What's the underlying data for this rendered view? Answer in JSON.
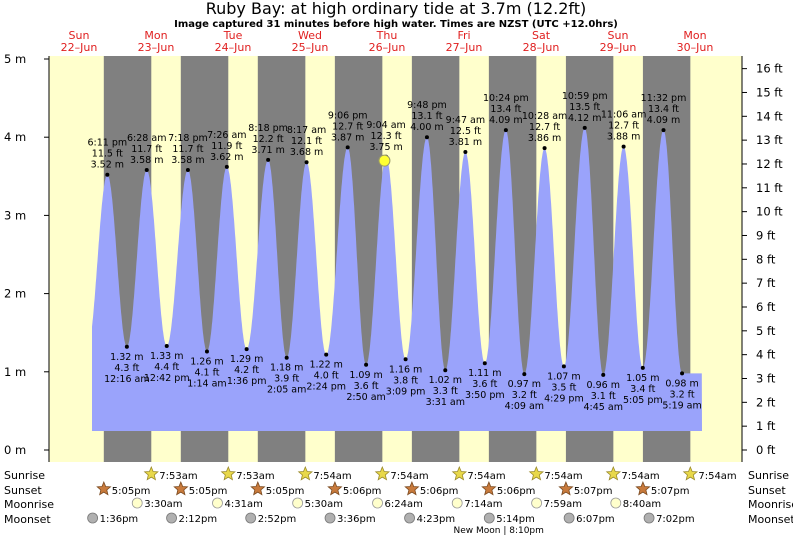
{
  "header": {
    "title": "Ruby Bay: at high  ordinary tide at 3.7m (12.2ft)",
    "subtitle": "Image captured 31 minutes before high water. Times are NZST (UTC +12.0hrs)"
  },
  "days": [
    {
      "name": "Sun",
      "date": "22–Jun"
    },
    {
      "name": "Mon",
      "date": "23–Jun"
    },
    {
      "name": "Tue",
      "date": "24–Jun"
    },
    {
      "name": "Wed",
      "date": "25–Jun"
    },
    {
      "name": "Thu",
      "date": "26–Jun"
    },
    {
      "name": "Fri",
      "date": "27–Jun"
    },
    {
      "name": "Sat",
      "date": "28–Jun"
    },
    {
      "name": "Sun",
      "date": "29–Jun"
    },
    {
      "name": "Mon",
      "date": "30–Jun"
    }
  ],
  "chart_data": {
    "type": "area",
    "y_left_unit": "m",
    "y_left_ticks": [
      "0 m",
      "1 m",
      "2 m",
      "3 m",
      "4 m",
      "5 m"
    ],
    "y_right_ticks": [
      "0 ft",
      "1 ft",
      "2 ft",
      "3 ft",
      "4 ft",
      "5 ft",
      "6 ft",
      "7 ft",
      "8 ft",
      "9 ft",
      "10 ft",
      "11 ft",
      "12 ft",
      "13 ft",
      "14 ft",
      "15 ft",
      "16 ft"
    ],
    "ylim_m": [
      0,
      5
    ],
    "start": "2025-06-22 00:00",
    "days_shown": 8,
    "tides": [
      {
        "type": "high",
        "day": 0,
        "time": "6:11 pm",
        "m": 3.52,
        "ft": "11.5 ft",
        "label": "3.52 m"
      },
      {
        "type": "low",
        "day": 1,
        "time": "12:16 am",
        "m": 1.32,
        "ft": "4.3 ft",
        "label": "1.32 m"
      },
      {
        "type": "high",
        "day": 1,
        "time": "6:28 am",
        "m": 3.58,
        "ft": "11.7 ft",
        "label": "3.58 m"
      },
      {
        "type": "low",
        "day": 1,
        "time": "12:42 pm",
        "m": 1.33,
        "ft": "4.4 ft",
        "label": "1.33 m"
      },
      {
        "type": "high",
        "day": 1,
        "time": "7:18 pm",
        "m": 3.58,
        "ft": "11.7 ft",
        "label": "3.58 m"
      },
      {
        "type": "low",
        "day": 2,
        "time": "1:14 am",
        "m": 1.26,
        "ft": "4.1 ft",
        "label": "1.26 m"
      },
      {
        "type": "high",
        "day": 2,
        "time": "7:26 am",
        "m": 3.62,
        "ft": "11.9 ft",
        "label": "3.62 m"
      },
      {
        "type": "low",
        "day": 2,
        "time": "1:36 pm",
        "m": 1.29,
        "ft": "4.2 ft",
        "label": "1.29 m"
      },
      {
        "type": "high",
        "day": 2,
        "time": "8:18 pm",
        "m": 3.71,
        "ft": "12.2 ft",
        "label": "3.71 m"
      },
      {
        "type": "low",
        "day": 3,
        "time": "2:05 am",
        "m": 1.18,
        "ft": "3.9 ft",
        "label": "1.18 m"
      },
      {
        "type": "high",
        "day": 3,
        "time": "8:17 am",
        "m": 3.68,
        "ft": "12.1 ft",
        "label": "3.68 m"
      },
      {
        "type": "low",
        "day": 3,
        "time": "2:24 pm",
        "m": 1.22,
        "ft": "4.0 ft",
        "label": "1.22 m"
      },
      {
        "type": "high",
        "day": 3,
        "time": "9:06 pm",
        "m": 3.87,
        "ft": "12.7 ft",
        "label": "3.87 m"
      },
      {
        "type": "low",
        "day": 4,
        "time": "2:50 am",
        "m": 1.09,
        "ft": "3.6 ft",
        "label": "1.09 m"
      },
      {
        "type": "high",
        "day": 4,
        "time": "9:04 am",
        "m": 3.75,
        "ft": "12.3 ft",
        "label": "3.75 m"
      },
      {
        "type": "low",
        "day": 4,
        "time": "3:09 pm",
        "m": 1.16,
        "ft": "3.8 ft",
        "label": "1.16 m"
      },
      {
        "type": "high",
        "day": 4,
        "time": "9:48 pm",
        "m": 4.0,
        "ft": "13.1 ft",
        "label": "4.00 m"
      },
      {
        "type": "low",
        "day": 5,
        "time": "3:31 am",
        "m": 1.02,
        "ft": "3.3 ft",
        "label": "1.02 m"
      },
      {
        "type": "high",
        "day": 5,
        "time": "9:47 am",
        "m": 3.81,
        "ft": "12.5 ft",
        "label": "3.81 m"
      },
      {
        "type": "low",
        "day": 5,
        "time": "3:50 pm",
        "m": 1.11,
        "ft": "3.6 ft",
        "label": "1.11 m"
      },
      {
        "type": "high",
        "day": 5,
        "time": "10:24 pm",
        "m": 4.09,
        "ft": "13.4 ft",
        "label": "4.09 m"
      },
      {
        "type": "low",
        "day": 6,
        "time": "4:09 am",
        "m": 0.97,
        "ft": "3.2 ft",
        "label": "0.97 m"
      },
      {
        "type": "high",
        "day": 6,
        "time": "10:28 am",
        "m": 3.86,
        "ft": "12.7 ft",
        "label": "3.86 m"
      },
      {
        "type": "low",
        "day": 6,
        "time": "4:29 pm",
        "m": 1.07,
        "ft": "3.5 ft",
        "label": "1.07 m"
      },
      {
        "type": "high",
        "day": 6,
        "time": "10:59 pm",
        "m": 4.12,
        "ft": "13.5 ft",
        "label": "4.12 m"
      },
      {
        "type": "low",
        "day": 7,
        "time": "4:45 am",
        "m": 0.96,
        "ft": "3.1 ft",
        "label": "0.96 m"
      },
      {
        "type": "high",
        "day": 7,
        "time": "11:06 am",
        "m": 3.88,
        "ft": "12.7 ft",
        "label": "3.88 m"
      },
      {
        "type": "low",
        "day": 7,
        "time": "5:05 pm",
        "m": 1.05,
        "ft": "3.4 ft",
        "label": "1.05 m"
      },
      {
        "type": "high",
        "day": 7,
        "time": "11:32 pm",
        "m": 4.09,
        "ft": "13.4 ft",
        "label": "4.09 m"
      },
      {
        "type": "low",
        "day": 8,
        "time": "5:19 am",
        "m": 0.98,
        "ft": "3.2 ft",
        "label": "0.98 m"
      }
    ],
    "current": {
      "day": 4,
      "time": "8:33 am",
      "m": 3.7
    },
    "colors": {
      "day": "#ffffcc",
      "night": "#808080",
      "water": "#9aa3fb",
      "sun": "#ffff33",
      "dayname": "#e02020"
    }
  },
  "astro": {
    "labels": {
      "sunrise": "Sunrise",
      "sunset": "Sunset",
      "moonrise": "Moonrise",
      "moonset": "Moonset"
    },
    "sunrise": [
      {
        "day": 1,
        "time": "7:53am"
      },
      {
        "day": 2,
        "time": "7:53am"
      },
      {
        "day": 3,
        "time": "7:54am"
      },
      {
        "day": 4,
        "time": "7:54am"
      },
      {
        "day": 5,
        "time": "7:54am"
      },
      {
        "day": 6,
        "time": "7:54am"
      },
      {
        "day": 7,
        "time": "7:54am"
      },
      {
        "day": 8,
        "time": "7:54am"
      }
    ],
    "sunset": [
      {
        "day": 0,
        "time": "5:05pm"
      },
      {
        "day": 1,
        "time": "5:05pm"
      },
      {
        "day": 2,
        "time": "5:05pm"
      },
      {
        "day": 3,
        "time": "5:06pm"
      },
      {
        "day": 4,
        "time": "5:06pm"
      },
      {
        "day": 5,
        "time": "5:06pm"
      },
      {
        "day": 6,
        "time": "5:07pm"
      },
      {
        "day": 7,
        "time": "5:07pm"
      }
    ],
    "moonrise": [
      {
        "day": 1,
        "time": "3:30am"
      },
      {
        "day": 2,
        "time": "4:31am"
      },
      {
        "day": 3,
        "time": "5:30am"
      },
      {
        "day": 4,
        "time": "6:24am"
      },
      {
        "day": 5,
        "time": "7:14am"
      },
      {
        "day": 6,
        "time": "7:59am"
      },
      {
        "day": 7,
        "time": "8:40am"
      }
    ],
    "moonset": [
      {
        "day": 0,
        "time": "1:36pm"
      },
      {
        "day": 1,
        "time": "2:12pm"
      },
      {
        "day": 2,
        "time": "2:52pm"
      },
      {
        "day": 3,
        "time": "3:36pm"
      },
      {
        "day": 4,
        "time": "4:23pm"
      },
      {
        "day": 5,
        "time": "5:14pm"
      },
      {
        "day": 6,
        "time": "6:07pm"
      },
      {
        "day": 7,
        "time": "7:02pm"
      }
    ],
    "new_moon": {
      "day": 5,
      "time": "8:10pm",
      "label": "New Moon | 8:10pm"
    }
  }
}
